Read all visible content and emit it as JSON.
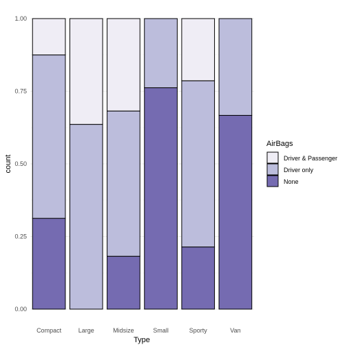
{
  "chart_data": {
    "type": "bar",
    "stacked": true,
    "proportional": true,
    "categories": [
      "Compact",
      "Large",
      "Midsize",
      "Small",
      "Sporty",
      "Van"
    ],
    "series": [
      {
        "name": "Driver & Passenger",
        "color": "#efedf5",
        "values": [
          0.125,
          0.364,
          0.318,
          0.0,
          0.214,
          0.0
        ]
      },
      {
        "name": "Driver only",
        "color": "#bcbddc",
        "values": [
          0.5625,
          0.636,
          0.5,
          0.238,
          0.572,
          0.333
        ]
      },
      {
        "name": "None",
        "color": "#756bb1",
        "values": [
          0.3125,
          0.0,
          0.182,
          0.762,
          0.214,
          0.667
        ]
      }
    ],
    "xlabel": "Type",
    "ylabel": "count",
    "ylim": [
      0,
      1
    ],
    "yticks": [
      "0.00",
      "0.25",
      "0.50",
      "0.75",
      "1.00"
    ],
    "yticks_values": [
      0,
      0.25,
      0.5,
      0.75,
      1.0
    ],
    "legend": {
      "title": "AirBags",
      "placement": "right",
      "entries": [
        "Driver & Passenger",
        "Driver only",
        "None"
      ]
    },
    "grid": true
  }
}
